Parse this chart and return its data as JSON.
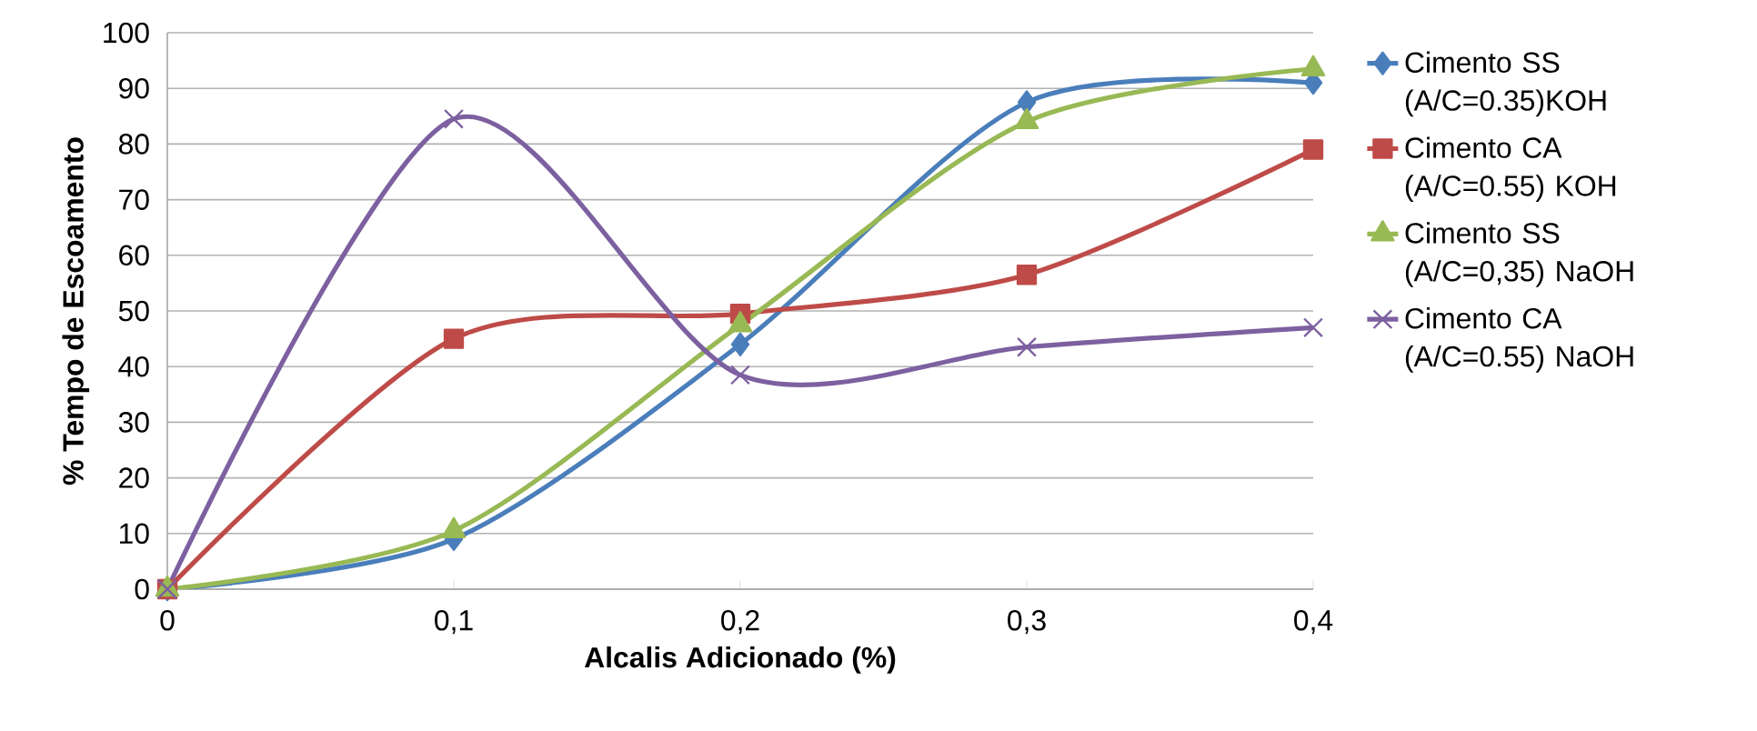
{
  "chart_data": {
    "type": "line",
    "xlabel": "Alcalis Adicionado (%)",
    "ylabel": "% Tempo de Escoamento",
    "x": [
      0,
      0.1,
      0.2,
      0.3,
      0.4
    ],
    "xlim": [
      0,
      0.4
    ],
    "xticks": [
      0,
      {
        "value": 0.1,
        "label": "0,1"
      },
      {
        "value": 0.2,
        "label": "0,2"
      },
      {
        "value": 0.3,
        "label": "0,3"
      },
      {
        "value": 0.4,
        "label": "0,4"
      }
    ],
    "ylim": [
      0,
      100
    ],
    "yticks": [
      0,
      10,
      20,
      30,
      40,
      50,
      60,
      70,
      80,
      90,
      100
    ],
    "grid": "y",
    "legend": "right",
    "line_style": "solid",
    "series": [
      {
        "name": "Cimento SS (A/C=0.35)KOH",
        "color": "#4a7ebb",
        "marker": "diamond",
        "values": [
          0,
          9,
          44,
          87.5,
          91
        ]
      },
      {
        "name": "Cimento CA (A/C=0.55) KOH",
        "color": "#be4b48",
        "marker": "square",
        "values": [
          0,
          45,
          49.5,
          56.5,
          79
        ]
      },
      {
        "name": "Cimento SS (A/C=0,35) NaOH",
        "color": "#98b954",
        "marker": "triangle",
        "values": [
          0,
          10.5,
          47.5,
          84,
          93.5
        ]
      },
      {
        "name": "Cimento CA (A/C=0.55) NaOH",
        "color": "#7d60a0",
        "marker": "cross",
        "values": [
          0,
          84.5,
          38.5,
          43.5,
          47
        ]
      }
    ]
  }
}
